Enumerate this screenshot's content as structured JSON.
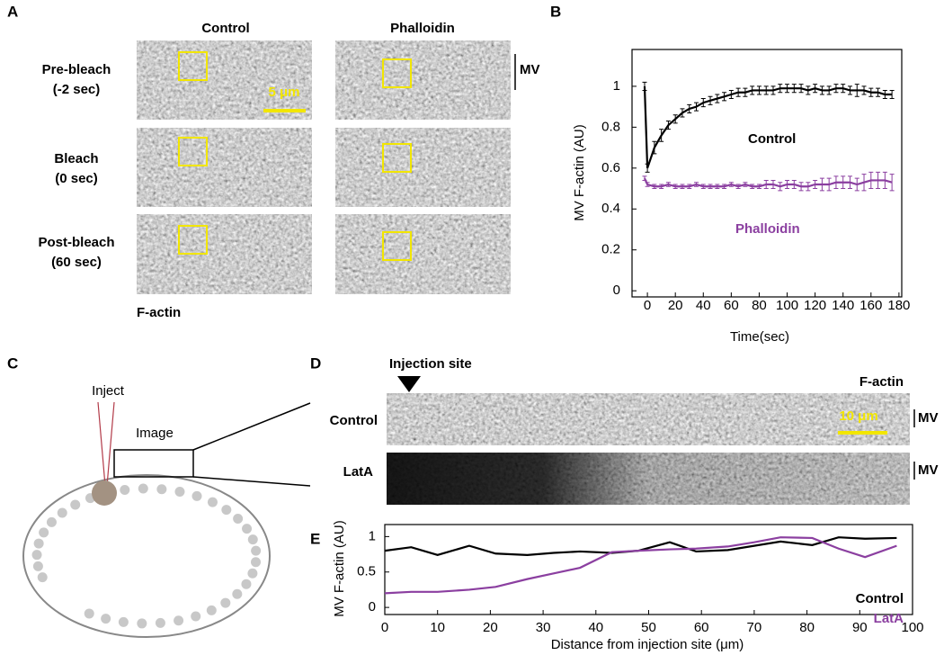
{
  "panels": {
    "A": {
      "label": "A",
      "columns": [
        "Control",
        "Phalloidin"
      ],
      "rows": [
        [
          "Pre-bleach",
          "(-2 sec)"
        ],
        [
          "Bleach",
          "(0 sec)"
        ],
        [
          "Post-bleach",
          "(60 sec)"
        ]
      ],
      "scale_bar": "5 μm",
      "mv": "MV",
      "stain": "F-actin"
    },
    "B": {
      "label": "B"
    },
    "C": {
      "label": "C",
      "inject": "Inject",
      "image": "Image"
    },
    "D": {
      "label": "D",
      "injection_site": "Injection site",
      "stain": "F-actin",
      "rows": [
        "Control",
        "LatA"
      ],
      "scale_bar": "10 μm",
      "mv": "MV"
    },
    "E": {
      "label": "E"
    }
  },
  "chart_data": [
    {
      "type": "line",
      "xlabel": "Time(sec)",
      "ylabel": "MV F-actin (AU)",
      "x": [
        -2,
        0,
        5,
        10,
        15,
        20,
        25,
        30,
        35,
        40,
        45,
        50,
        55,
        60,
        65,
        70,
        75,
        80,
        85,
        90,
        95,
        100,
        105,
        110,
        115,
        120,
        125,
        130,
        135,
        140,
        145,
        150,
        155,
        160,
        165,
        170,
        175
      ],
      "series": [
        {
          "name": "Control",
          "color": "#000000",
          "values": [
            1.0,
            0.6,
            0.7,
            0.76,
            0.81,
            0.84,
            0.87,
            0.89,
            0.9,
            0.92,
            0.93,
            0.94,
            0.95,
            0.96,
            0.97,
            0.97,
            0.98,
            0.98,
            0.98,
            0.98,
            0.99,
            0.99,
            0.99,
            0.99,
            0.98,
            0.99,
            0.98,
            0.98,
            0.99,
            0.99,
            0.98,
            0.98,
            0.98,
            0.97,
            0.97,
            0.96,
            0.96
          ],
          "errors": [
            0.02,
            0.02,
            0.03,
            0.03,
            0.02,
            0.02,
            0.02,
            0.02,
            0.02,
            0.02,
            0.02,
            0.02,
            0.02,
            0.02,
            0.02,
            0.02,
            0.02,
            0.02,
            0.02,
            0.02,
            0.02,
            0.02,
            0.02,
            0.02,
            0.02,
            0.02,
            0.02,
            0.02,
            0.02,
            0.02,
            0.02,
            0.03,
            0.02,
            0.02,
            0.02,
            0.02,
            0.02
          ]
        },
        {
          "name": "Phalloidin",
          "color": "#8b3fa0",
          "values": [
            0.55,
            0.52,
            0.51,
            0.51,
            0.52,
            0.51,
            0.51,
            0.51,
            0.52,
            0.51,
            0.51,
            0.51,
            0.51,
            0.52,
            0.51,
            0.52,
            0.51,
            0.51,
            0.52,
            0.52,
            0.51,
            0.52,
            0.52,
            0.51,
            0.51,
            0.52,
            0.52,
            0.52,
            0.53,
            0.53,
            0.53,
            0.52,
            0.53,
            0.54,
            0.54,
            0.54,
            0.53
          ],
          "errors": [
            0.01,
            0.01,
            0.01,
            0.01,
            0.01,
            0.01,
            0.01,
            0.01,
            0.01,
            0.01,
            0.01,
            0.01,
            0.01,
            0.01,
            0.01,
            0.01,
            0.01,
            0.01,
            0.02,
            0.02,
            0.02,
            0.02,
            0.02,
            0.02,
            0.02,
            0.02,
            0.03,
            0.03,
            0.03,
            0.03,
            0.03,
            0.03,
            0.04,
            0.04,
            0.04,
            0.04,
            0.04
          ]
        }
      ],
      "xlim": [
        -11,
        182
      ],
      "ylim": [
        -0.03,
        1.18
      ],
      "xticks": [
        0,
        20,
        40,
        60,
        80,
        100,
        120,
        140,
        160,
        180
      ],
      "yticks": [
        0,
        0.2,
        0.4,
        0.6,
        0.8,
        1
      ]
    },
    {
      "type": "line",
      "xlabel": "Distance from injection site (μm)",
      "ylabel": "MV F-actin (AU)",
      "x": [
        0,
        5,
        10,
        16,
        21,
        27,
        32,
        37,
        43,
        48,
        54,
        59,
        65,
        70,
        75,
        81,
        86,
        91,
        97
      ],
      "series": [
        {
          "name": "Control",
          "color": "#000000",
          "values": [
            0.8,
            0.85,
            0.74,
            0.87,
            0.76,
            0.74,
            0.77,
            0.79,
            0.77,
            0.8,
            0.92,
            0.79,
            0.81,
            0.87,
            0.93,
            0.88,
            0.99,
            0.97,
            0.98
          ]
        },
        {
          "name": "LatA",
          "color": "#8b3fa0",
          "values": [
            0.2,
            0.22,
            0.22,
            0.25,
            0.29,
            0.4,
            0.48,
            0.56,
            0.78,
            0.8,
            0.82,
            0.83,
            0.86,
            0.92,
            0.99,
            0.98,
            0.83,
            0.71,
            0.87
          ]
        }
      ],
      "xlim": [
        0,
        100
      ],
      "ylim": [
        -0.1,
        1.17
      ],
      "xticks": [
        0,
        10,
        20,
        30,
        40,
        50,
        60,
        70,
        80,
        90,
        100
      ],
      "yticks": [
        0,
        0.5,
        1
      ]
    }
  ]
}
